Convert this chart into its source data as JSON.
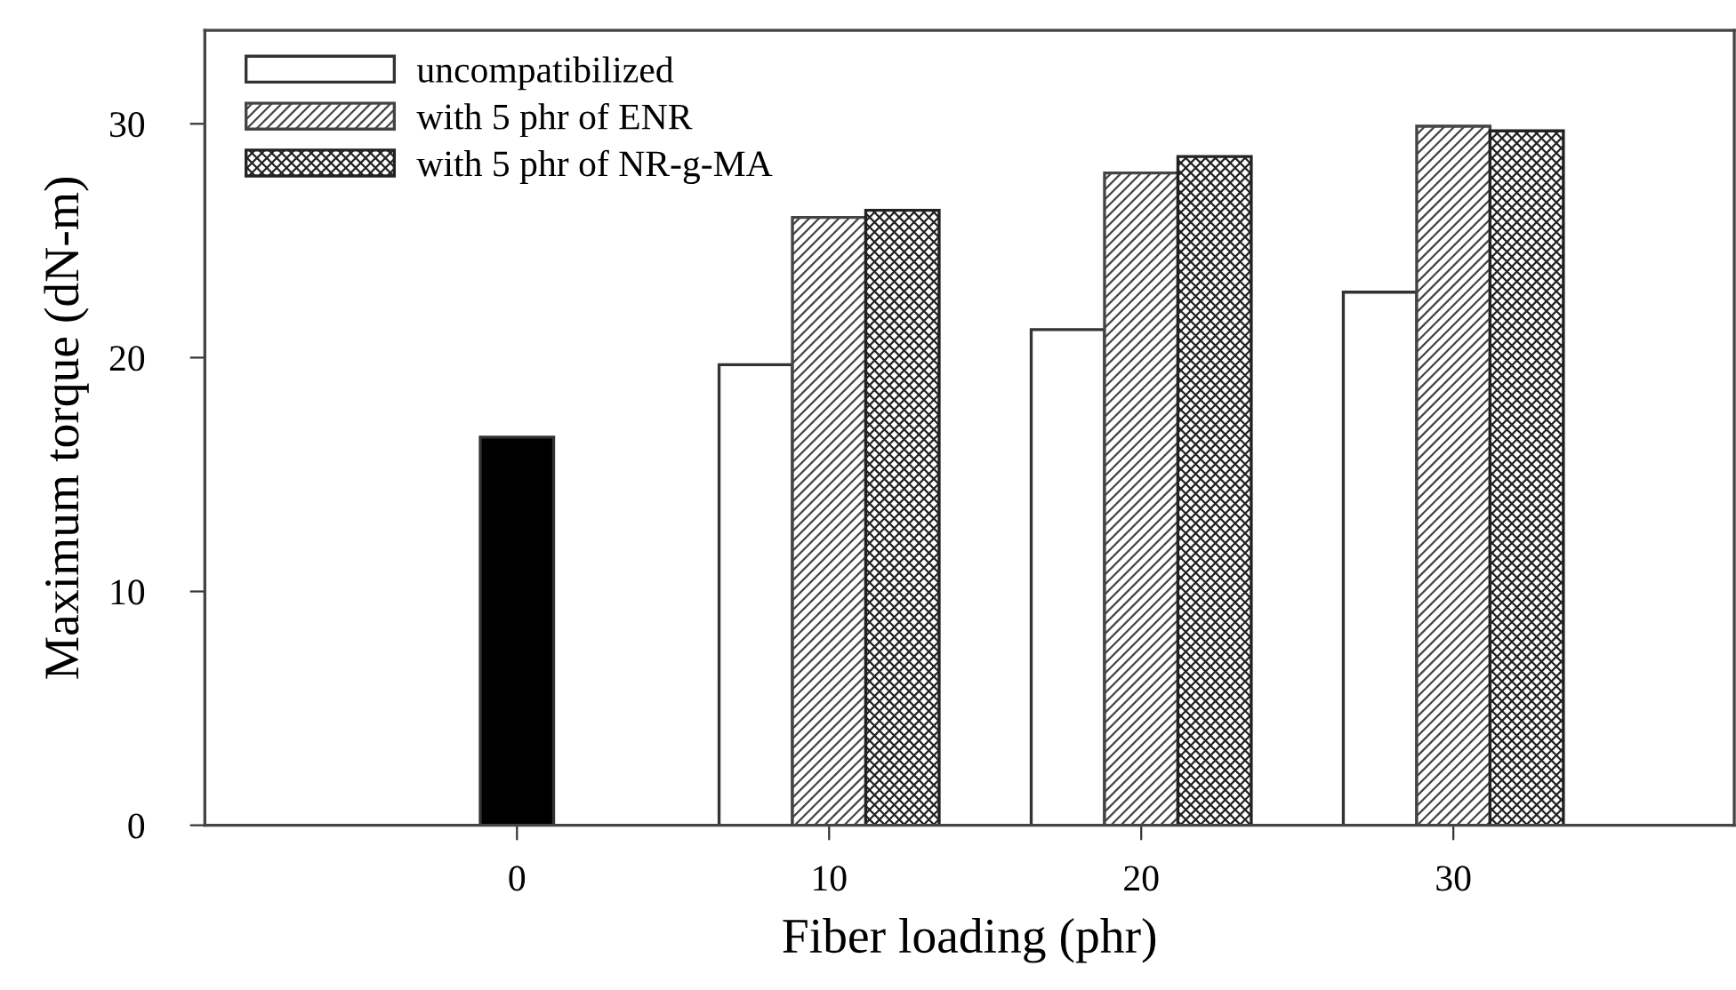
{
  "chart_data": {
    "type": "bar",
    "xlabel": "Fiber loading (phr)",
    "ylabel": "Maximum torque (dN-m)",
    "series": [
      {
        "x": [
          0
        ],
        "values": [
          16.6
        ],
        "color": "#000000"
      },
      {
        "name": "uncompatibilized",
        "x": [
          10,
          20,
          30
        ],
        "values": [
          19.7,
          21.2,
          22.8
        ],
        "color": "#ffffff"
      },
      {
        "name": "with 5 phr of ENR",
        "x": [
          10,
          20,
          30
        ],
        "values": [
          26.0,
          27.9,
          29.9
        ],
        "color": "#444444"
      },
      {
        "name": "with 5 phr of NR-g-MA",
        "x": [
          10,
          20,
          30
        ],
        "values": [
          26.3,
          28.6,
          29.7
        ],
        "color": "#222222"
      }
    ],
    "xlim": [
      -10,
      39
    ],
    "xticks": [
      0,
      10,
      20,
      30
    ],
    "ylim": [
      0,
      34
    ],
    "yticks": [
      0,
      10,
      20,
      30
    ],
    "grid": false,
    "legend": "top left"
  }
}
